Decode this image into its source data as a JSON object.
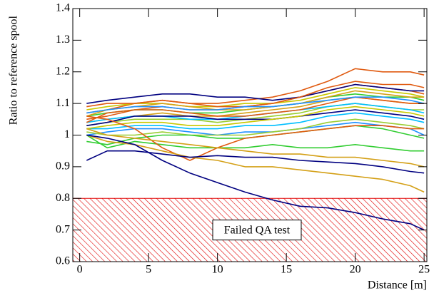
{
  "chart_data": {
    "type": "line",
    "y_label": "Ratio to reference spool",
    "x_label": "Distance [m]",
    "annotation": "Failed QA test",
    "threshold": 0.8,
    "xlim": [
      -0.5,
      25.2
    ],
    "ylim": [
      0.6,
      1.4
    ],
    "xticks": [
      0,
      5,
      10,
      15,
      20,
      25
    ],
    "yticks": [
      0.6,
      0.7,
      0.8,
      0.9,
      1,
      1.1,
      1.2,
      1.3,
      1.4
    ],
    "x": [
      0.5,
      2,
      4,
      6,
      8,
      10,
      12,
      14,
      16,
      18,
      20,
      22,
      24,
      25
    ],
    "series": [
      {
        "color": "#e05a10",
        "values": [
          1.07,
          1.08,
          1.1,
          1.11,
          1.1,
          1.1,
          1.11,
          1.12,
          1.14,
          1.17,
          1.21,
          1.2,
          1.2,
          1.19
        ]
      },
      {
        "color": "#e05a10",
        "values": [
          1.05,
          1.06,
          1.08,
          1.09,
          1.08,
          1.08,
          1.09,
          1.1,
          1.12,
          1.14,
          1.16,
          1.15,
          1.14,
          1.13
        ]
      },
      {
        "color": "#000080",
        "values": [
          1.1,
          1.11,
          1.12,
          1.13,
          1.13,
          1.12,
          1.12,
          1.11,
          1.12,
          1.14,
          1.16,
          1.15,
          1.14,
          1.14
        ]
      },
      {
        "color": "#d4a017",
        "values": [
          1.04,
          1.05,
          1.06,
          1.07,
          1.06,
          1.06,
          1.07,
          1.08,
          1.09,
          1.11,
          1.12,
          1.11,
          1.1,
          1.1
        ]
      },
      {
        "color": "#9acd32",
        "values": [
          1.03,
          1.04,
          1.05,
          1.05,
          1.05,
          1.04,
          1.05,
          1.06,
          1.07,
          1.09,
          1.1,
          1.09,
          1.08,
          1.08
        ]
      },
      {
        "color": "#00bfff",
        "values": [
          1.02,
          1.02,
          1.03,
          1.03,
          1.02,
          1.02,
          1.03,
          1.03,
          1.04,
          1.06,
          1.07,
          1.06,
          1.05,
          1.04
        ]
      },
      {
        "color": "#32cd32",
        "values": [
          1.06,
          1.07,
          1.08,
          1.08,
          1.07,
          1.07,
          1.08,
          1.09,
          1.1,
          1.12,
          1.13,
          1.12,
          1.12,
          1.11
        ]
      },
      {
        "color": "#c8c800",
        "values": [
          1.08,
          1.09,
          1.1,
          1.1,
          1.09,
          1.09,
          1.1,
          1.1,
          1.11,
          1.13,
          1.15,
          1.14,
          1.13,
          1.12
        ]
      },
      {
        "color": "#1e90ff",
        "values": [
          1.0,
          1.01,
          1.02,
          1.02,
          1.01,
          1.0,
          1.01,
          1.01,
          1.02,
          1.03,
          1.04,
          1.03,
          1.02,
          1.0
        ]
      },
      {
        "color": "#e05a10",
        "values": [
          1.09,
          1.1,
          1.1,
          1.11,
          1.1,
          1.09,
          1.09,
          1.1,
          1.12,
          1.15,
          1.17,
          1.16,
          1.16,
          1.15
        ]
      },
      {
        "color": "#9acd32",
        "values": [
          1.01,
          1.0,
          1.0,
          1.01,
          1.0,
          1.0,
          1.0,
          1.01,
          1.02,
          1.04,
          1.05,
          1.04,
          1.03,
          1.02
        ]
      },
      {
        "color": "#00bfff",
        "values": [
          1.04,
          1.05,
          1.06,
          1.06,
          1.05,
          1.05,
          1.06,
          1.07,
          1.08,
          1.09,
          1.1,
          1.09,
          1.08,
          1.07
        ]
      },
      {
        "color": "#d4a017",
        "values": [
          1.06,
          1.08,
          1.09,
          1.1,
          1.09,
          1.08,
          1.08,
          1.09,
          1.1,
          1.12,
          1.14,
          1.13,
          1.12,
          1.12
        ]
      },
      {
        "color": "#000080",
        "values": [
          1.03,
          1.04,
          1.06,
          1.06,
          1.06,
          1.05,
          1.05,
          1.05,
          1.06,
          1.07,
          1.08,
          1.07,
          1.06,
          1.05
        ]
      },
      {
        "color": "#32cd32",
        "values": [
          0.98,
          0.97,
          0.99,
          1.0,
          1.0,
          0.99,
          0.99,
          1.0,
          1.01,
          1.02,
          1.03,
          1.02,
          1.0,
          0.99
        ]
      },
      {
        "color": "#c8c800",
        "values": [
          1.02,
          1.03,
          1.04,
          1.04,
          1.03,
          1.03,
          1.04,
          1.05,
          1.06,
          1.08,
          1.09,
          1.08,
          1.07,
          1.06
        ]
      },
      {
        "color": "#e05a10",
        "values": [
          1.04,
          1.07,
          1.08,
          1.08,
          1.07,
          1.06,
          1.06,
          1.07,
          1.08,
          1.1,
          1.12,
          1.11,
          1.1,
          1.1
        ]
      },
      {
        "color": "#1e90ff",
        "values": [
          1.07,
          1.08,
          1.09,
          1.09,
          1.08,
          1.08,
          1.09,
          1.09,
          1.1,
          1.11,
          1.12,
          1.12,
          1.11,
          1.1
        ]
      },
      {
        "color": "#32cd32",
        "values": [
          1.0,
          0.96,
          0.98,
          0.97,
          0.96,
          0.96,
          0.96,
          0.97,
          0.96,
          0.96,
          0.97,
          0.96,
          0.95,
          0.95
        ]
      },
      {
        "color": "#e05a10",
        "values": [
          1.06,
          1.05,
          1.02,
          0.96,
          0.92,
          0.96,
          0.99,
          1.0,
          1.01,
          1.02,
          1.03,
          1.03,
          1.02,
          1.02
        ]
      },
      {
        "color": "#d4a017",
        "values": [
          1.02,
          1.0,
          0.99,
          0.98,
          0.97,
          0.96,
          0.95,
          0.94,
          0.94,
          0.93,
          0.93,
          0.92,
          0.91,
          0.9
        ]
      },
      {
        "color": "#d4a017",
        "values": [
          1.0,
          0.98,
          0.97,
          0.95,
          0.93,
          0.92,
          0.9,
          0.9,
          0.89,
          0.88,
          0.87,
          0.86,
          0.84,
          0.82
        ]
      },
      {
        "color": "#000080",
        "values": [
          0.92,
          0.95,
          0.95,
          0.94,
          0.93,
          0.935,
          0.93,
          0.93,
          0.92,
          0.915,
          0.91,
          0.9,
          0.885,
          0.88
        ]
      },
      {
        "color": "#000080",
        "values": [
          1.0,
          0.99,
          0.97,
          0.92,
          0.88,
          0.85,
          0.82,
          0.795,
          0.775,
          0.77,
          0.755,
          0.735,
          0.72,
          0.7
        ]
      }
    ]
  }
}
